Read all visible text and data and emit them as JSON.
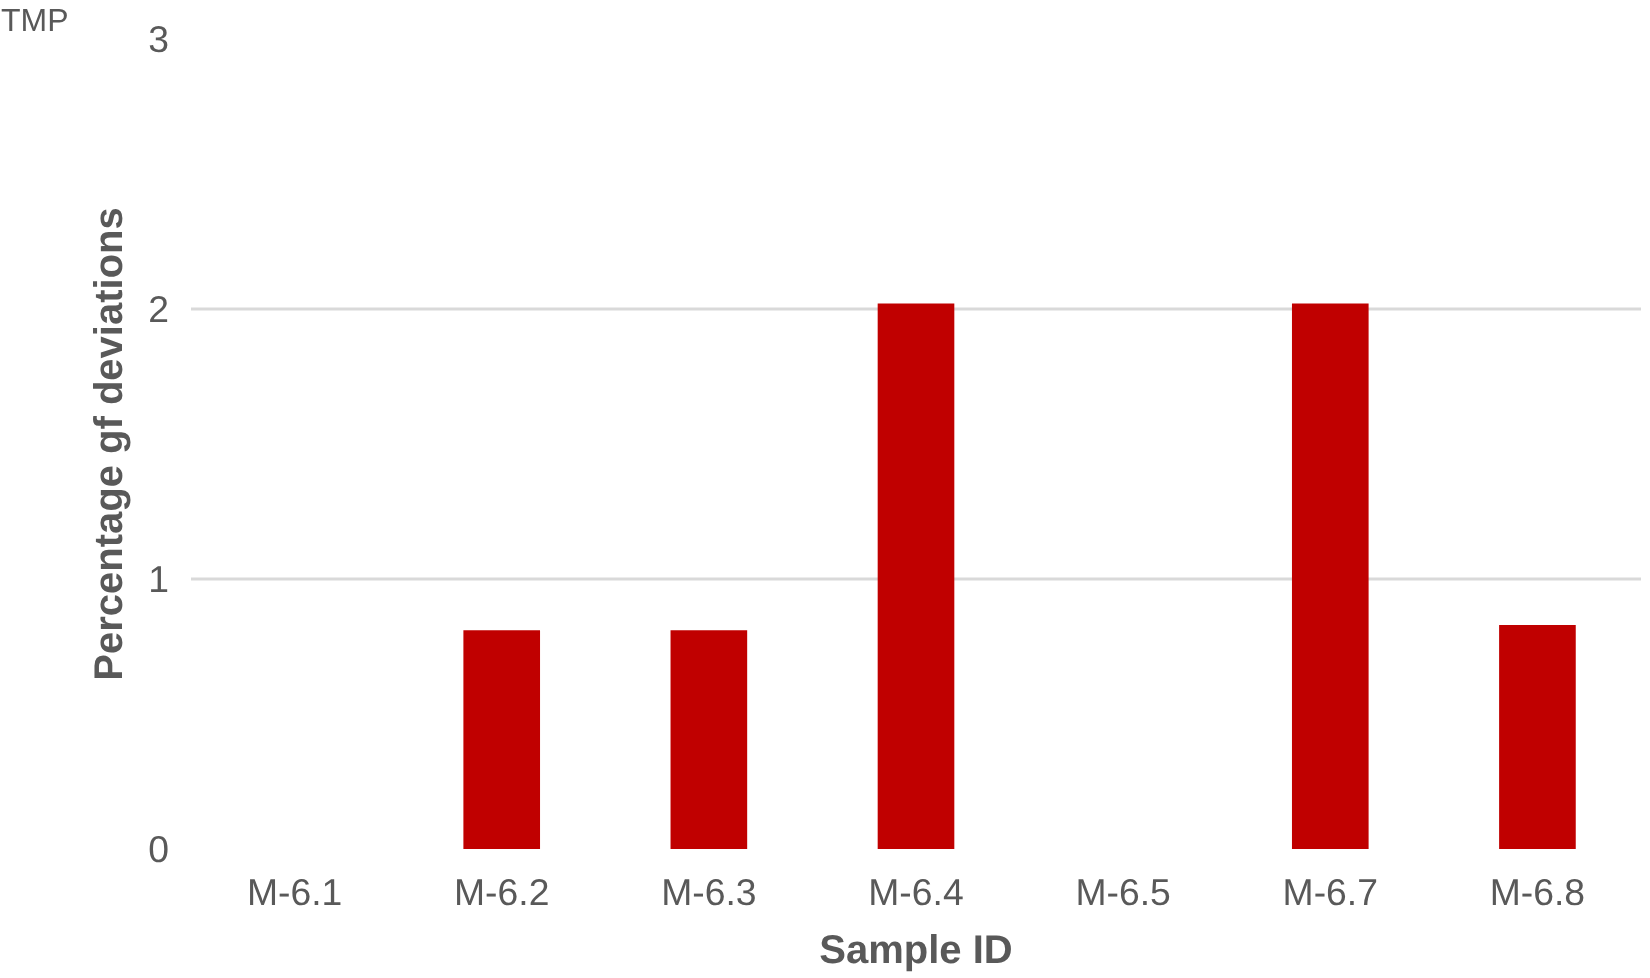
{
  "chart_data": {
    "type": "bar",
    "xlabel": "Sample ID",
    "ylabel": "Percentage gf deviations",
    "annotations": [
      "TMP"
    ],
    "categories": [
      "M-6.1",
      "M-6.2",
      "M-6.3",
      "M-6.4",
      "M-6.5",
      "M-6.7",
      "M-6.8"
    ],
    "values": [
      0,
      0.81,
      0.81,
      2.02,
      0,
      2.02,
      0.83
    ],
    "color": "#c00000",
    "ylim": [
      0,
      3
    ],
    "yticks": [
      0,
      1,
      2,
      3
    ],
    "grid": "y"
  }
}
